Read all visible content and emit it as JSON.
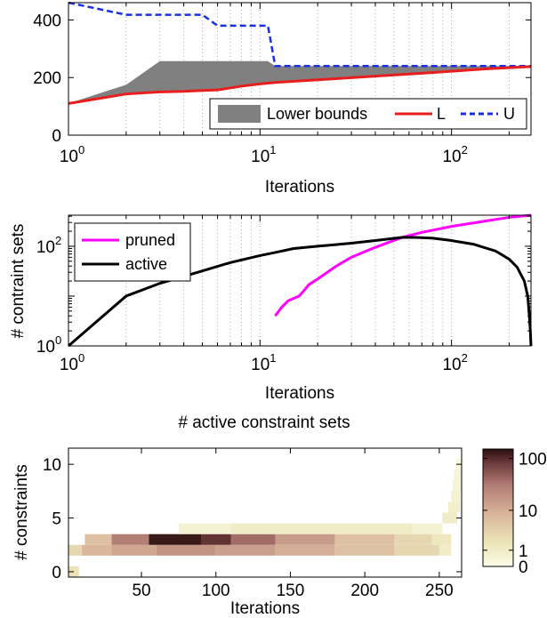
{
  "chart_data": [
    {
      "type": "area",
      "xscale": "log",
      "xlabel": "Iterations",
      "ylabel": "",
      "xlim": [
        1,
        260
      ],
      "ylim": [
        0,
        460
      ],
      "xticks": [
        {
          "value": 1,
          "base": "10",
          "exp": "0"
        },
        {
          "value": 10,
          "base": "10",
          "exp": "1"
        },
        {
          "value": 100,
          "base": "10",
          "exp": "2"
        }
      ],
      "yticks": [
        0,
        200,
        400
      ],
      "legend": {
        "position": "bottom-right",
        "entries": [
          "Lower bounds",
          "L",
          "U"
        ]
      },
      "colors": {
        "area": "#808080",
        "L": "#e81d1d",
        "U": "#1a2fe6"
      },
      "series": [
        {
          "name": "L",
          "style": "solid",
          "x": [
            1,
            2,
            3,
            4,
            5,
            6,
            8,
            10,
            12,
            20,
            40,
            70,
            100,
            150,
            260
          ],
          "y": [
            110,
            143,
            150,
            152,
            155,
            157,
            170,
            178,
            183,
            192,
            205,
            215,
            222,
            230,
            238
          ]
        },
        {
          "name": "U",
          "style": "dashed",
          "x": [
            1,
            2,
            5,
            6,
            11,
            12,
            260
          ],
          "y": [
            460,
            418,
            418,
            380,
            380,
            240,
            240
          ]
        },
        {
          "name": "Lower bounds",
          "style": "area",
          "x": [
            1,
            2,
            3,
            11,
            12,
            20,
            40,
            100,
            260
          ],
          "y": [
            110,
            175,
            257,
            257,
            240,
            240,
            240,
            240,
            240
          ]
        }
      ]
    },
    {
      "type": "line",
      "xscale": "log",
      "yscale": "log",
      "xlabel": "Iterations",
      "ylabel": "# contraint sets",
      "xlim": [
        1,
        260
      ],
      "ylim": [
        1,
        420
      ],
      "xticks": [
        {
          "value": 1,
          "base": "10",
          "exp": "0"
        },
        {
          "value": 10,
          "base": "10",
          "exp": "1"
        },
        {
          "value": 100,
          "base": "10",
          "exp": "2"
        }
      ],
      "yticks": [
        {
          "value": 1,
          "base": "10",
          "exp": "0"
        },
        {
          "value": 100,
          "base": "10",
          "exp": "2"
        }
      ],
      "legend": {
        "position": "top-left",
        "entries": [
          "pruned",
          "active"
        ]
      },
      "colors": {
        "pruned": "#ff00ff",
        "active": "#000000"
      },
      "series": [
        {
          "name": "pruned",
          "x": [
            12,
            13,
            14,
            15,
            16,
            17,
            18,
            20,
            25,
            30,
            40,
            55,
            70,
            100,
            150,
            200,
            260
          ],
          "y": [
            4,
            6,
            8,
            9,
            10,
            13,
            17,
            22,
            40,
            60,
            95,
            150,
            190,
            250,
            320,
            380,
            420
          ]
        },
        {
          "name": "active",
          "x": [
            1,
            2,
            3,
            5,
            7,
            10,
            12,
            15,
            20,
            30,
            40,
            55,
            65,
            80,
            100,
            130,
            170,
            200,
            220,
            240,
            250,
            255,
            258,
            260
          ],
          "y": [
            1,
            10,
            18,
            32,
            47,
            65,
            75,
            90,
            100,
            115,
            130,
            150,
            150,
            145,
            130,
            110,
            80,
            55,
            38,
            20,
            10,
            4,
            2,
            1
          ]
        }
      ]
    },
    {
      "type": "heatmap",
      "title": "# active constraint sets",
      "xlabel": "Iterations",
      "ylabel": "# constraints",
      "xlim": [
        1,
        265
      ],
      "ylim": [
        -0.5,
        11.5
      ],
      "xticks": [
        50,
        100,
        150,
        200,
        250
      ],
      "yticks": [
        0,
        5,
        10
      ],
      "colorbar": {
        "scale": "log",
        "ticks": [
          0,
          1,
          10,
          100
        ],
        "range": [
          0,
          150
        ]
      },
      "colors": {
        "low": "#fdfbe9",
        "mid": "#c9967e",
        "high": "#2a0e0e"
      },
      "rows": [
        {
          "constraints": 0,
          "cells": [
            {
              "from": 1,
              "to": 8,
              "value": 2
            }
          ]
        },
        {
          "constraints": 2,
          "cells": [
            {
              "from": 1,
              "to": 10,
              "value": 3
            },
            {
              "from": 10,
              "to": 30,
              "value": 8
            },
            {
              "from": 30,
              "to": 60,
              "value": 12
            },
            {
              "from": 60,
              "to": 100,
              "value": 18
            },
            {
              "from": 100,
              "to": 140,
              "value": 14
            },
            {
              "from": 140,
              "to": 180,
              "value": 10
            },
            {
              "from": 180,
              "to": 220,
              "value": 6
            },
            {
              "from": 220,
              "to": 250,
              "value": 3
            },
            {
              "from": 250,
              "to": 258,
              "value": 1
            }
          ]
        },
        {
          "constraints": 3,
          "cells": [
            {
              "from": 12,
              "to": 30,
              "value": 6
            },
            {
              "from": 30,
              "to": 55,
              "value": 30
            },
            {
              "from": 55,
              "to": 90,
              "value": 130
            },
            {
              "from": 90,
              "to": 110,
              "value": 90
            },
            {
              "from": 110,
              "to": 140,
              "value": 40
            },
            {
              "from": 140,
              "to": 180,
              "value": 15
            },
            {
              "from": 180,
              "to": 220,
              "value": 6
            },
            {
              "from": 220,
              "to": 245,
              "value": 3
            },
            {
              "from": 245,
              "to": 258,
              "value": 1.5
            }
          ]
        },
        {
          "constraints": 4,
          "cells": [
            {
              "from": 75,
              "to": 110,
              "value": 0.6
            },
            {
              "from": 110,
              "to": 232,
              "value": 1
            },
            {
              "from": 232,
              "to": 252,
              "value": 0.6
            }
          ]
        },
        {
          "constraints": 5,
          "cells": [
            {
              "from": 252,
              "to": 262,
              "value": 1
            }
          ]
        },
        {
          "constraints": 6,
          "cells": [
            {
              "from": 256,
              "to": 264,
              "value": 0.8
            }
          ]
        },
        {
          "constraints": 7,
          "cells": [
            {
              "from": 258,
              "to": 264,
              "value": 0.6
            }
          ]
        },
        {
          "constraints": 8,
          "cells": [
            {
              "from": 259,
              "to": 265,
              "value": 0.5
            }
          ]
        },
        {
          "constraints": 9,
          "cells": [
            {
              "from": 260,
              "to": 265,
              "value": 0.4
            }
          ]
        },
        {
          "constraints": 10,
          "cells": [
            {
              "from": 261,
              "to": 265,
              "value": 0.3
            }
          ]
        }
      ]
    }
  ]
}
